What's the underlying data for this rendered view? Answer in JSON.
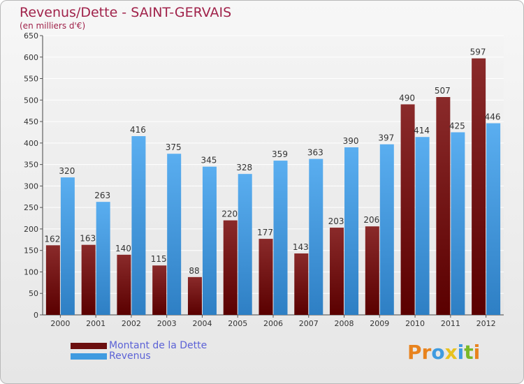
{
  "header": {
    "title": "Revenus/Dette - SAINT-GERVAIS",
    "subtitle": "(en milliers d'€)"
  },
  "chart_data": {
    "type": "bar",
    "categories": [
      "2000",
      "2001",
      "2002",
      "2003",
      "2004",
      "2005",
      "2006",
      "2007",
      "2008",
      "2009",
      "2010",
      "2011",
      "2012"
    ],
    "series": [
      {
        "name": "Montant de la Dette",
        "color": "#7a1414",
        "values": [
          162,
          163,
          140,
          115,
          88,
          220,
          177,
          143,
          203,
          206,
          490,
          507,
          597
        ]
      },
      {
        "name": "Revenus",
        "color": "#3f9be0",
        "values": [
          320,
          263,
          416,
          375,
          345,
          328,
          359,
          363,
          390,
          397,
          414,
          425,
          446
        ]
      }
    ],
    "ylim": [
      0,
      650
    ],
    "ytick_step": 50,
    "grid": true,
    "legend_position": "bottom-left"
  },
  "legend": {
    "items": [
      {
        "label": "Montant de la Dette",
        "color": "#6b0f0f"
      },
      {
        "label": "Revenus",
        "color": "#3f9be0"
      }
    ]
  },
  "logo": {
    "text": "Proxiti",
    "colors": [
      "#e8831e",
      "#e8831e",
      "#3f9be0",
      "#e8c21e",
      "#3f9be0",
      "#7ab828",
      "#e8831e"
    ]
  }
}
